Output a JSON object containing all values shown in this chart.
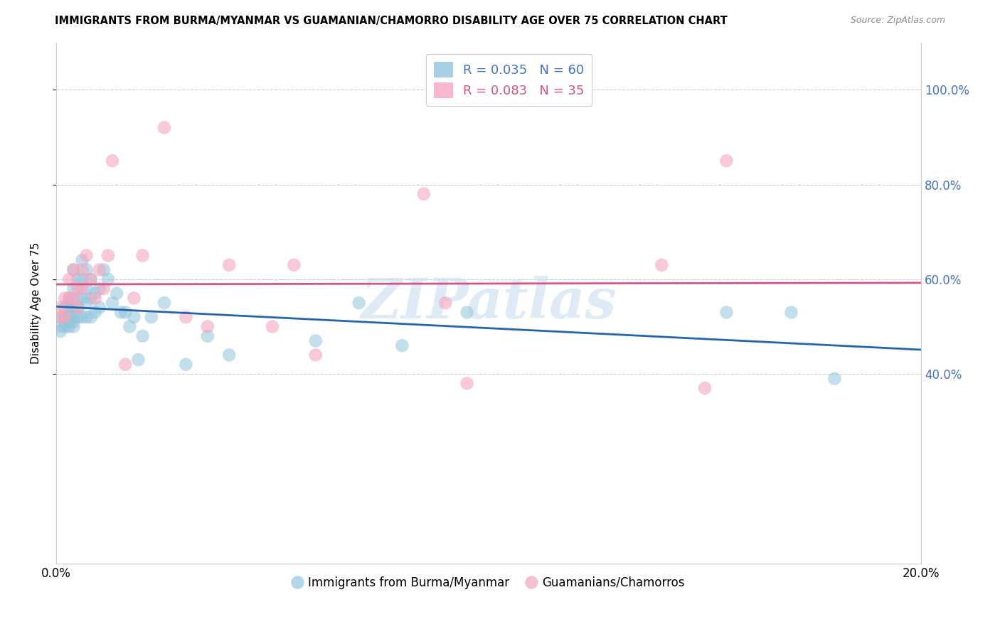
{
  "title": "IMMIGRANTS FROM BURMA/MYANMAR VS GUAMANIAN/CHAMORRO DISABILITY AGE OVER 75 CORRELATION CHART",
  "source": "Source: ZipAtlas.com",
  "ylabel": "Disability Age Over 75",
  "xlim": [
    0.0,
    0.2
  ],
  "ylim": [
    0.0,
    1.1
  ],
  "ytick_vals": [
    0.4,
    0.6,
    0.8,
    1.0
  ],
  "ytick_labels": [
    "40.0%",
    "60.0%",
    "80.0%",
    "100.0%"
  ],
  "xticks": [
    0.0,
    0.05,
    0.1,
    0.15,
    0.2
  ],
  "xtick_labels": [
    "0.0%",
    "",
    "",
    "",
    "20.0%"
  ],
  "legend_labels": [
    "Immigrants from Burma/Myanmar",
    "Guamanians/Chamorros"
  ],
  "blue_color": "#92c5de",
  "pink_color": "#f4a6bd",
  "blue_line_color": "#2166ac",
  "pink_line_color": "#d6538a",
  "watermark": "ZIPatlas",
  "blue_x": [
    0.001,
    0.001,
    0.001,
    0.002,
    0.002,
    0.002,
    0.002,
    0.003,
    0.003,
    0.003,
    0.003,
    0.003,
    0.003,
    0.004,
    0.004,
    0.004,
    0.004,
    0.004,
    0.004,
    0.005,
    0.005,
    0.005,
    0.005,
    0.006,
    0.006,
    0.006,
    0.006,
    0.007,
    0.007,
    0.007,
    0.007,
    0.008,
    0.008,
    0.008,
    0.009,
    0.009,
    0.01,
    0.01,
    0.011,
    0.012,
    0.013,
    0.014,
    0.015,
    0.016,
    0.017,
    0.018,
    0.019,
    0.02,
    0.022,
    0.025,
    0.03,
    0.035,
    0.04,
    0.06,
    0.07,
    0.08,
    0.095,
    0.155,
    0.17,
    0.18
  ],
  "blue_y": [
    0.52,
    0.5,
    0.49,
    0.54,
    0.52,
    0.51,
    0.5,
    0.56,
    0.55,
    0.54,
    0.52,
    0.51,
    0.5,
    0.62,
    0.58,
    0.54,
    0.52,
    0.51,
    0.5,
    0.6,
    0.56,
    0.54,
    0.52,
    0.64,
    0.6,
    0.56,
    0.52,
    0.62,
    0.58,
    0.55,
    0.52,
    0.6,
    0.56,
    0.52,
    0.57,
    0.53,
    0.58,
    0.54,
    0.62,
    0.6,
    0.55,
    0.57,
    0.53,
    0.53,
    0.5,
    0.52,
    0.43,
    0.48,
    0.52,
    0.55,
    0.42,
    0.48,
    0.44,
    0.47,
    0.55,
    0.46,
    0.53,
    0.53,
    0.53,
    0.39
  ],
  "pink_x": [
    0.001,
    0.001,
    0.002,
    0.002,
    0.003,
    0.003,
    0.004,
    0.004,
    0.005,
    0.005,
    0.006,
    0.006,
    0.007,
    0.008,
    0.009,
    0.01,
    0.011,
    0.012,
    0.013,
    0.016,
    0.018,
    0.02,
    0.025,
    0.03,
    0.035,
    0.04,
    0.05,
    0.055,
    0.06,
    0.085,
    0.09,
    0.095,
    0.14,
    0.15,
    0.155
  ],
  "pink_y": [
    0.54,
    0.52,
    0.56,
    0.52,
    0.6,
    0.56,
    0.62,
    0.56,
    0.58,
    0.54,
    0.62,
    0.58,
    0.65,
    0.6,
    0.56,
    0.62,
    0.58,
    0.65,
    0.85,
    0.42,
    0.56,
    0.65,
    0.92,
    0.52,
    0.5,
    0.63,
    0.5,
    0.63,
    0.44,
    0.78,
    0.55,
    0.38,
    0.63,
    0.37,
    0.85
  ]
}
